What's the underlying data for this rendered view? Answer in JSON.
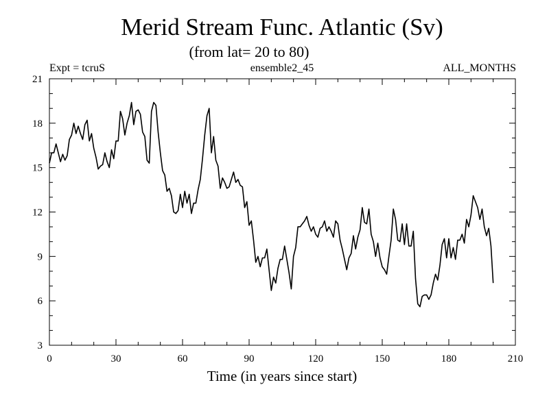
{
  "chart_data": {
    "type": "line",
    "title": "Merid Stream Func. Atlantic (Sv)",
    "subtitle": "(from lat= 20 to 80)",
    "header_left": "Expt = tcruS",
    "header_center": "ensemble2_45",
    "header_right": "ALL_MONTHS",
    "xlabel": "Time (in years since start)",
    "ylabel": "",
    "xlim": [
      0,
      210
    ],
    "ylim": [
      3,
      21
    ],
    "xticks": [
      0,
      30,
      60,
      90,
      120,
      150,
      180,
      210
    ],
    "yticks": [
      3,
      6,
      9,
      12,
      15,
      18,
      21
    ],
    "x_minor_step": 10,
    "y_minor_step": 1,
    "grid": false,
    "series": [
      {
        "x": [
          0,
          1,
          2,
          3,
          4,
          5,
          6,
          7,
          8,
          9,
          10,
          11,
          12,
          13,
          14,
          15,
          16,
          17,
          18,
          19,
          20,
          21,
          22,
          23,
          24,
          25,
          26,
          27,
          28,
          29,
          30,
          31,
          32,
          33,
          34,
          35,
          36,
          37,
          38,
          39,
          40,
          41,
          42,
          43,
          44,
          45,
          46,
          47,
          48,
          49,
          50,
          51,
          52,
          53,
          54,
          55,
          56,
          57,
          58,
          59,
          60,
          61,
          62,
          63,
          64,
          65,
          66,
          67,
          68,
          69,
          70,
          71,
          72,
          73,
          74,
          75,
          76,
          77,
          78,
          79,
          80,
          81,
          82,
          83,
          84,
          85,
          86,
          87,
          88,
          89,
          90,
          91,
          92,
          93,
          94,
          95,
          96,
          97,
          98,
          99,
          100,
          101,
          102,
          103,
          104,
          105,
          106,
          107,
          108,
          109,
          110,
          111,
          112,
          113,
          114,
          115,
          116,
          117,
          118,
          119,
          120,
          121,
          122,
          123,
          124,
          125,
          126,
          127,
          128,
          129,
          130,
          131,
          132,
          133,
          134,
          135,
          136,
          137,
          138,
          139,
          140,
          141,
          142,
          143,
          144,
          145,
          146,
          147,
          148,
          149,
          150,
          151,
          152,
          153,
          154,
          155,
          156,
          157,
          158,
          159,
          160,
          161,
          162,
          163,
          164,
          165,
          166,
          167,
          168,
          169,
          170,
          171,
          172,
          173,
          174,
          175,
          176,
          177,
          178,
          179,
          180,
          181,
          182,
          183,
          184,
          185,
          186,
          187,
          188,
          189,
          190,
          191,
          192,
          193,
          194,
          195,
          196,
          197,
          198,
          199,
          200
        ],
        "y": [
          15.3,
          16.0,
          16.0,
          16.6,
          16.0,
          15.4,
          15.9,
          15.5,
          15.8,
          16.9,
          17.2,
          18.0,
          17.3,
          17.8,
          17.3,
          16.9,
          17.9,
          18.2,
          16.8,
          17.3,
          16.3,
          15.7,
          14.9,
          15.1,
          15.2,
          16.0,
          15.4,
          15.0,
          16.2,
          15.6,
          16.8,
          16.8,
          18.8,
          18.3,
          17.2,
          18.0,
          18.5,
          19.4,
          17.9,
          18.8,
          18.9,
          18.6,
          17.4,
          17.1,
          15.5,
          15.3,
          18.8,
          19.4,
          19.2,
          17.4,
          16.0,
          14.8,
          14.5,
          13.4,
          13.6,
          13.1,
          12.0,
          11.9,
          12.1,
          13.2,
          12.3,
          13.4,
          12.6,
          13.2,
          11.9,
          12.6,
          12.6,
          13.5,
          14.2,
          15.6,
          17.2,
          18.5,
          19.0,
          16.0,
          17.1,
          15.5,
          15.1,
          13.6,
          14.3,
          14.0,
          13.6,
          13.7,
          14.2,
          14.7,
          14.0,
          14.2,
          13.8,
          13.7,
          12.3,
          12.7,
          11.1,
          11.4,
          10.1,
          8.6,
          9.0,
          8.3,
          8.9,
          8.9,
          9.5,
          8.1,
          6.7,
          7.6,
          7.2,
          8.2,
          8.8,
          8.8,
          9.7,
          8.8,
          7.9,
          6.8,
          9.0,
          9.6,
          11.0,
          11.0,
          11.2,
          11.4,
          11.7,
          11.1,
          10.7,
          11.0,
          10.5,
          10.3,
          10.9,
          11.0,
          11.4,
          10.7,
          11.0,
          10.7,
          10.3,
          11.4,
          11.2,
          10.1,
          9.5,
          8.8,
          8.1,
          8.9,
          9.2,
          10.4,
          9.5,
          10.3,
          10.8,
          12.3,
          11.3,
          11.2,
          12.2,
          10.5,
          10.0,
          9.0,
          9.9,
          8.9,
          8.3,
          8.1,
          7.8,
          9.0,
          10.1,
          12.2,
          11.5,
          10.1,
          10.0,
          11.2,
          9.8,
          11.2,
          9.7,
          9.7,
          10.7,
          7.5,
          5.8,
          5.6,
          6.3,
          6.4,
          6.4,
          6.1,
          6.4,
          7.2,
          7.8,
          7.4,
          8.4,
          9.8,
          10.2,
          8.9,
          10.2,
          8.9,
          9.6,
          8.8,
          10.1,
          10.1,
          10.5,
          9.9,
          11.5,
          11.0,
          11.8,
          13.1,
          12.7,
          12.3,
          11.5,
          12.2,
          11.0,
          10.4,
          10.9,
          9.7,
          7.2
        ]
      }
    ]
  }
}
